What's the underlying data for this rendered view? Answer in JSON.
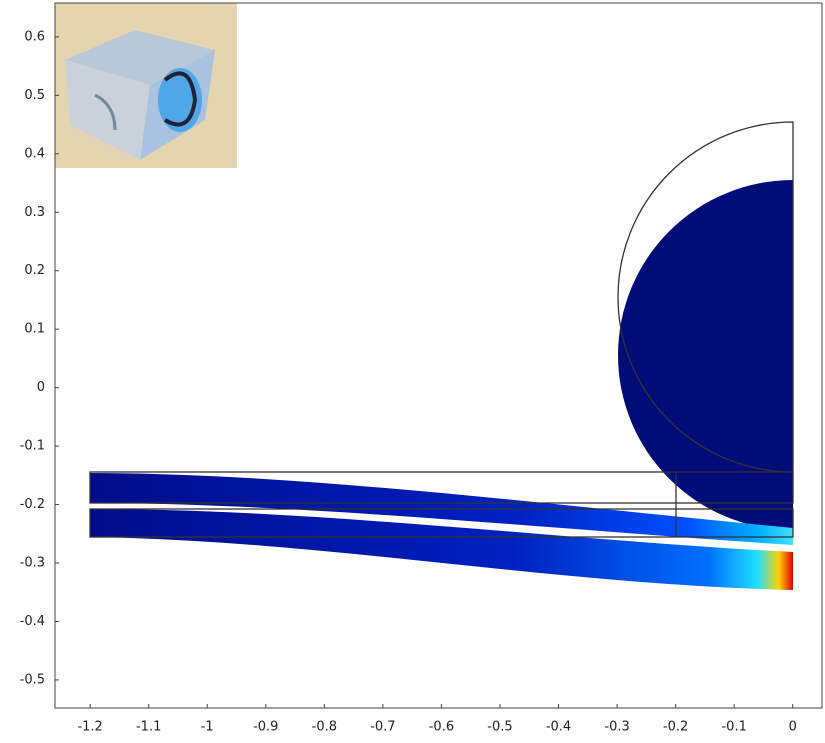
{
  "chart_data": {
    "type": "plot",
    "xlim": [
      -1.26,
      0.05
    ],
    "xticks": [
      -1.2,
      -1.1,
      -1,
      -0.9,
      -0.8,
      -0.7,
      -0.6,
      -0.5,
      -0.4,
      -0.3,
      -0.2,
      -0.1,
      0
    ],
    "ylim": [
      -0.548,
      0.658
    ],
    "yticks": [
      -0.5,
      -0.4,
      -0.3,
      -0.2,
      -0.1,
      0,
      0.1,
      0.2,
      0.3,
      0.4,
      0.5,
      0.6
    ],
    "grid": false
  }
}
